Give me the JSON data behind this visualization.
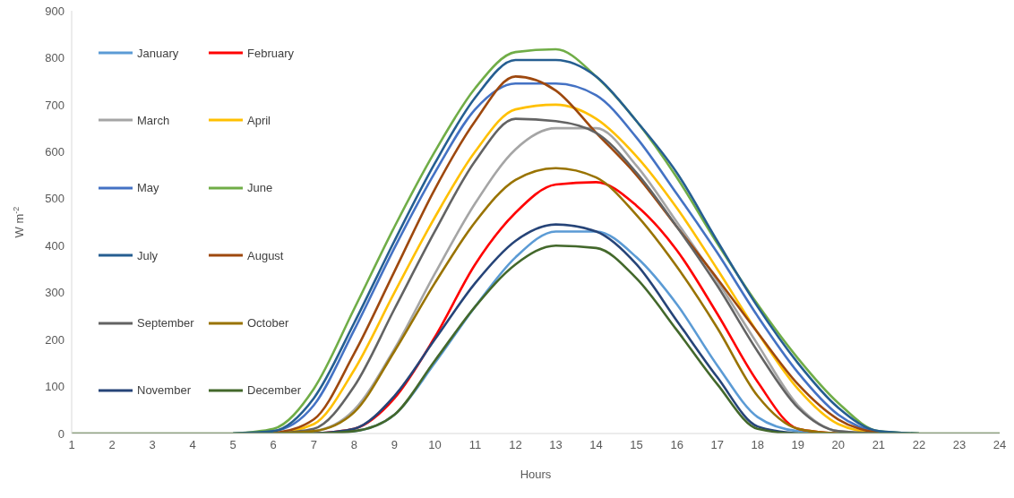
{
  "chart_data": {
    "type": "line",
    "xlabel": "Hours",
    "ylabel": "W m$^{-2}$",
    "x": [
      1,
      2,
      3,
      4,
      5,
      6,
      7,
      8,
      9,
      10,
      11,
      12,
      13,
      14,
      15,
      16,
      17,
      18,
      19,
      20,
      21,
      22,
      23,
      24
    ],
    "xlim": [
      1,
      24
    ],
    "xticks": [
      1,
      2,
      3,
      4,
      5,
      6,
      7,
      8,
      9,
      10,
      11,
      12,
      13,
      14,
      15,
      16,
      17,
      18,
      19,
      20,
      21,
      22,
      23,
      24
    ],
    "ylim": [
      0,
      900
    ],
    "yticks": [
      0,
      100,
      200,
      300,
      400,
      500,
      600,
      700,
      800,
      900
    ],
    "grid": false,
    "legend": "top left",
    "marker": "none",
    "line_style": "solid",
    "series": [
      {
        "name": "January",
        "color": "#5b9bd5",
        "values": [
          null,
          null,
          null,
          null,
          null,
          null,
          0,
          5,
          40,
          150,
          270,
          375,
          430,
          430,
          375,
          275,
          145,
          35,
          5,
          0,
          null,
          null,
          null,
          null
        ]
      },
      {
        "name": "February",
        "color": "#ff0000",
        "values": [
          null,
          null,
          null,
          null,
          null,
          null,
          0,
          10,
          75,
          205,
          360,
          470,
          530,
          535,
          485,
          390,
          255,
          110,
          10,
          0,
          null,
          null,
          null,
          null
        ]
      },
      {
        "name": "March",
        "color": "#a5a5a5",
        "values": [
          null,
          null,
          null,
          null,
          null,
          0,
          5,
          50,
          180,
          340,
          490,
          605,
          650,
          650,
          570,
          450,
          325,
          190,
          60,
          5,
          0,
          null,
          null,
          null
        ]
      },
      {
        "name": "April",
        "color": "#ffc000",
        "values": [
          null,
          null,
          null,
          null,
          null,
          0,
          20,
          135,
          300,
          460,
          600,
          690,
          700,
          670,
          590,
          480,
          350,
          215,
          95,
          20,
          0,
          null,
          null,
          null
        ]
      },
      {
        "name": "May",
        "color": "#4472c4",
        "values": [
          null,
          null,
          null,
          null,
          0,
          5,
          60,
          220,
          395,
          555,
          690,
          745,
          745,
          720,
          630,
          510,
          385,
          250,
          130,
          40,
          0,
          null,
          null,
          null
        ]
      },
      {
        "name": "June",
        "color": "#70ad47",
        "values": [
          null,
          null,
          null,
          null,
          0,
          10,
          95,
          265,
          440,
          600,
          735,
          812,
          818,
          760,
          665,
          545,
          405,
          275,
          160,
          65,
          5,
          0,
          null,
          null
        ]
      },
      {
        "name": "July",
        "color": "#255e91",
        "values": [
          null,
          null,
          null,
          null,
          0,
          5,
          75,
          235,
          410,
          575,
          715,
          795,
          795,
          760,
          665,
          555,
          410,
          270,
          150,
          55,
          5,
          0,
          null,
          null
        ]
      },
      {
        "name": "August",
        "color": "#9e480e",
        "values": [
          null,
          null,
          null,
          null,
          null,
          0,
          30,
          170,
          345,
          520,
          665,
          760,
          730,
          640,
          550,
          440,
          330,
          215,
          105,
          30,
          0,
          null,
          null,
          null
        ]
      },
      {
        "name": "September",
        "color": "#636363",
        "values": [
          null,
          null,
          null,
          null,
          null,
          0,
          10,
          100,
          265,
          430,
          580,
          670,
          665,
          640,
          555,
          440,
          315,
          175,
          55,
          5,
          0,
          null,
          null,
          null
        ]
      },
      {
        "name": "October",
        "color": "#997300",
        "values": [
          null,
          null,
          null,
          null,
          null,
          0,
          5,
          45,
          175,
          320,
          450,
          540,
          565,
          545,
          465,
          355,
          225,
          80,
          10,
          0,
          null,
          null,
          null,
          null
        ]
      },
      {
        "name": "November",
        "color": "#264478",
        "values": [
          null,
          null,
          null,
          null,
          null,
          null,
          0,
          10,
          80,
          200,
          320,
          410,
          445,
          430,
          360,
          240,
          120,
          15,
          0,
          null,
          null,
          null,
          null,
          null
        ]
      },
      {
        "name": "December",
        "color": "#43682b",
        "values": [
          0,
          0,
          0,
          0,
          0,
          0,
          0,
          5,
          40,
          155,
          270,
          360,
          400,
          395,
          330,
          220,
          105,
          10,
          0,
          0,
          0,
          0,
          0,
          0
        ]
      }
    ]
  }
}
